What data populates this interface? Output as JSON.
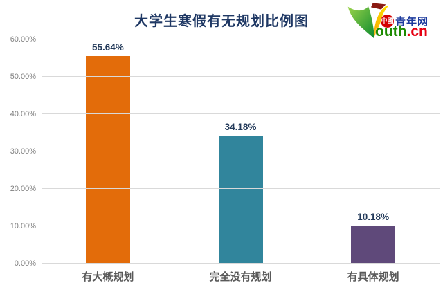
{
  "logo": {
    "badge_text": "中國",
    "badge_suffix": "青年网",
    "wordmark_green": "outh",
    "wordmark_red": ".cn",
    "colors": {
      "badge_bg": "#D40000",
      "suffix_blue": "#1E3C9E",
      "wordmark_green": "#1C8A00",
      "wordmark_red": "#E60012"
    }
  },
  "chart_data": {
    "type": "bar",
    "title": "大学生寒假有无规划比例图",
    "categories": [
      "有大概规划",
      "完全没有规划",
      "有具体规划"
    ],
    "values": [
      55.64,
      34.18,
      10.18
    ],
    "value_labels": [
      "55.64%",
      "34.18%",
      "10.18%"
    ],
    "bar_colors": [
      "#E36C0A",
      "#31859C",
      "#5F497A"
    ],
    "ylim": [
      0,
      60
    ],
    "ytick_values": [
      0,
      10,
      20,
      30,
      40,
      50,
      60
    ],
    "ytick_labels": [
      "0.00%",
      "10.00%",
      "20.00%",
      "30.00%",
      "40.00%",
      "50.00%",
      "60.00%"
    ],
    "grid": true,
    "legend": false,
    "title_color": "#1F3864",
    "grid_color": "#D9D9D9"
  }
}
